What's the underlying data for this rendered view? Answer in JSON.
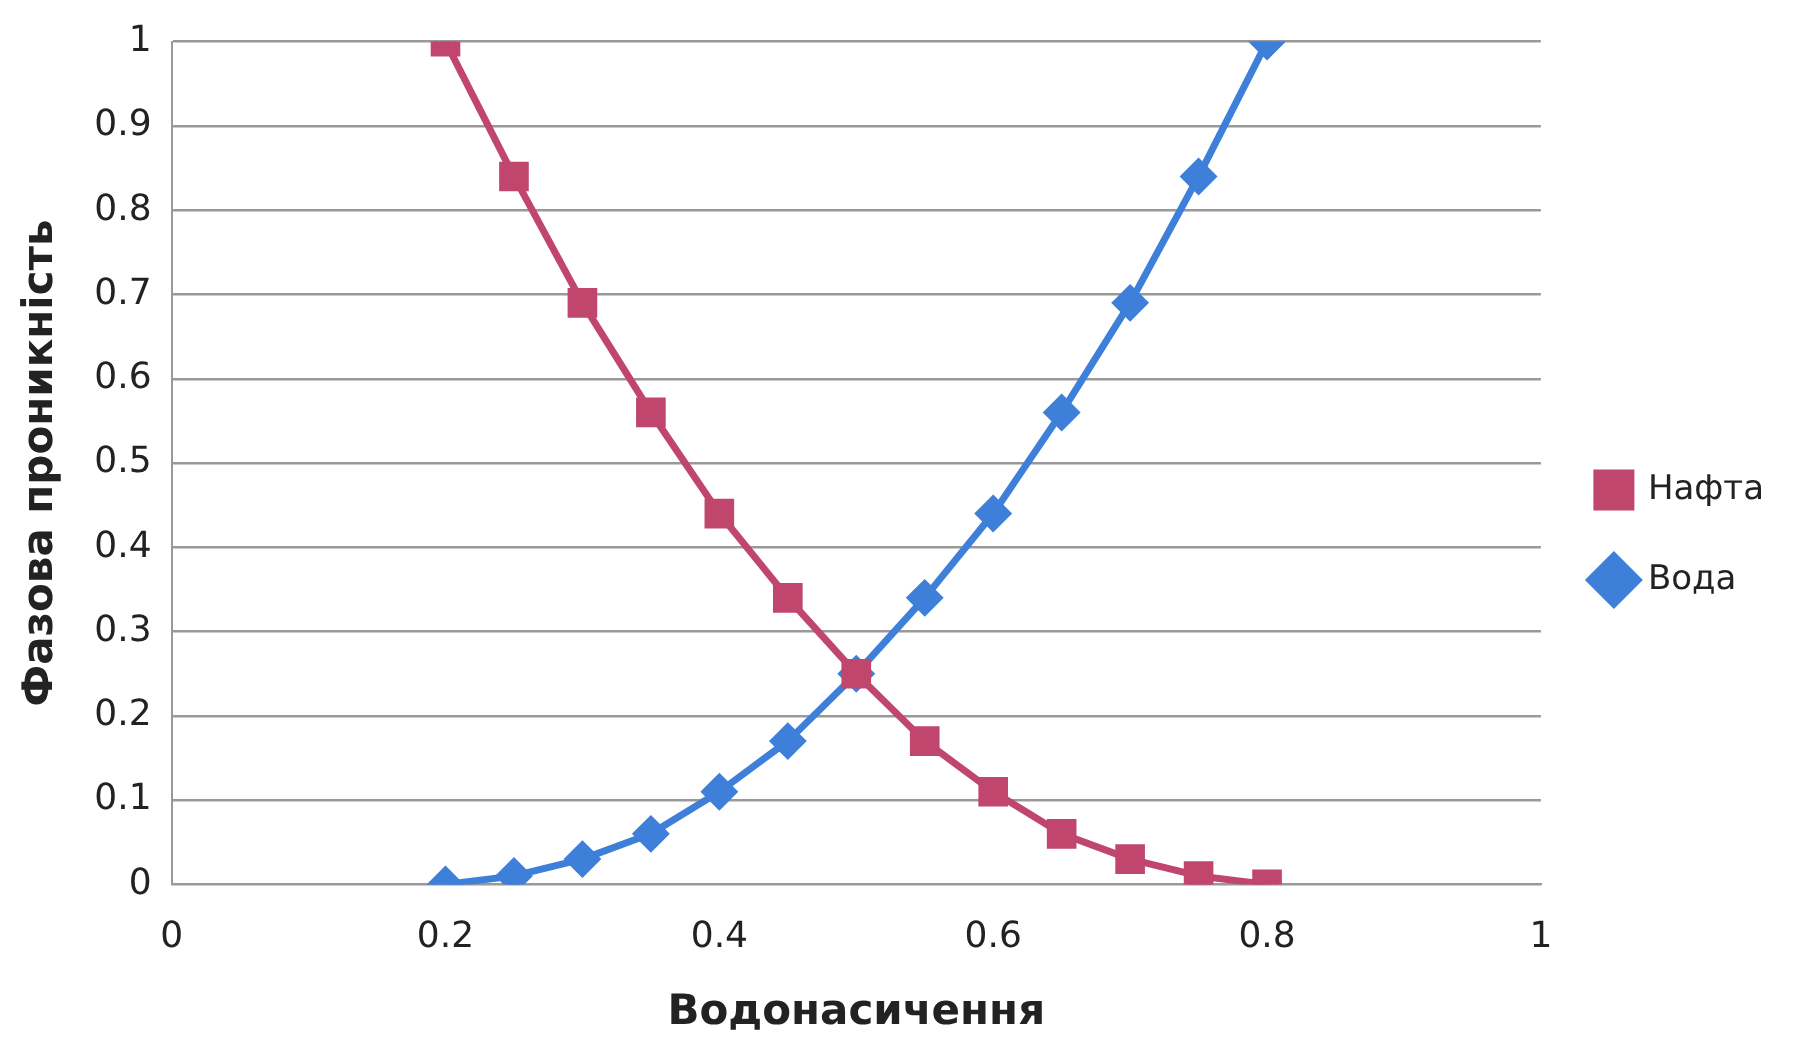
{
  "chart_data": {
    "type": "line",
    "xlabel": "Водонасичення",
    "ylabel": "Фазова проникність",
    "x": [
      0.2,
      0.25,
      0.3,
      0.35,
      0.4,
      0.45,
      0.5,
      0.55,
      0.6,
      0.65,
      0.7,
      0.75,
      0.8
    ],
    "series": [
      {
        "name": "Вода",
        "color": "#3d7fd9",
        "marker": "diamond",
        "values": [
          0,
          0.01,
          0.03,
          0.06,
          0.11,
          0.17,
          0.25,
          0.34,
          0.44,
          0.56,
          0.69,
          0.84,
          1
        ]
      },
      {
        "name": "Нафта",
        "color": "#c0466e",
        "marker": "square",
        "values": [
          1,
          0.84,
          0.69,
          0.56,
          0.44,
          0.34,
          0.25,
          0.17,
          0.11,
          0.06,
          0.03,
          0.01,
          0
        ]
      }
    ],
    "xlim": [
      0,
      1
    ],
    "xticks": [
      0,
      0.2,
      0.4,
      0.6,
      0.8,
      1
    ],
    "ylim": [
      0,
      1
    ],
    "yticks": [
      0,
      0.1,
      0.2,
      0.3,
      0.4,
      0.5,
      0.6,
      0.7,
      0.8,
      0.9,
      1
    ],
    "grid": "y",
    "legend": "right",
    "line_style": "solid"
  }
}
